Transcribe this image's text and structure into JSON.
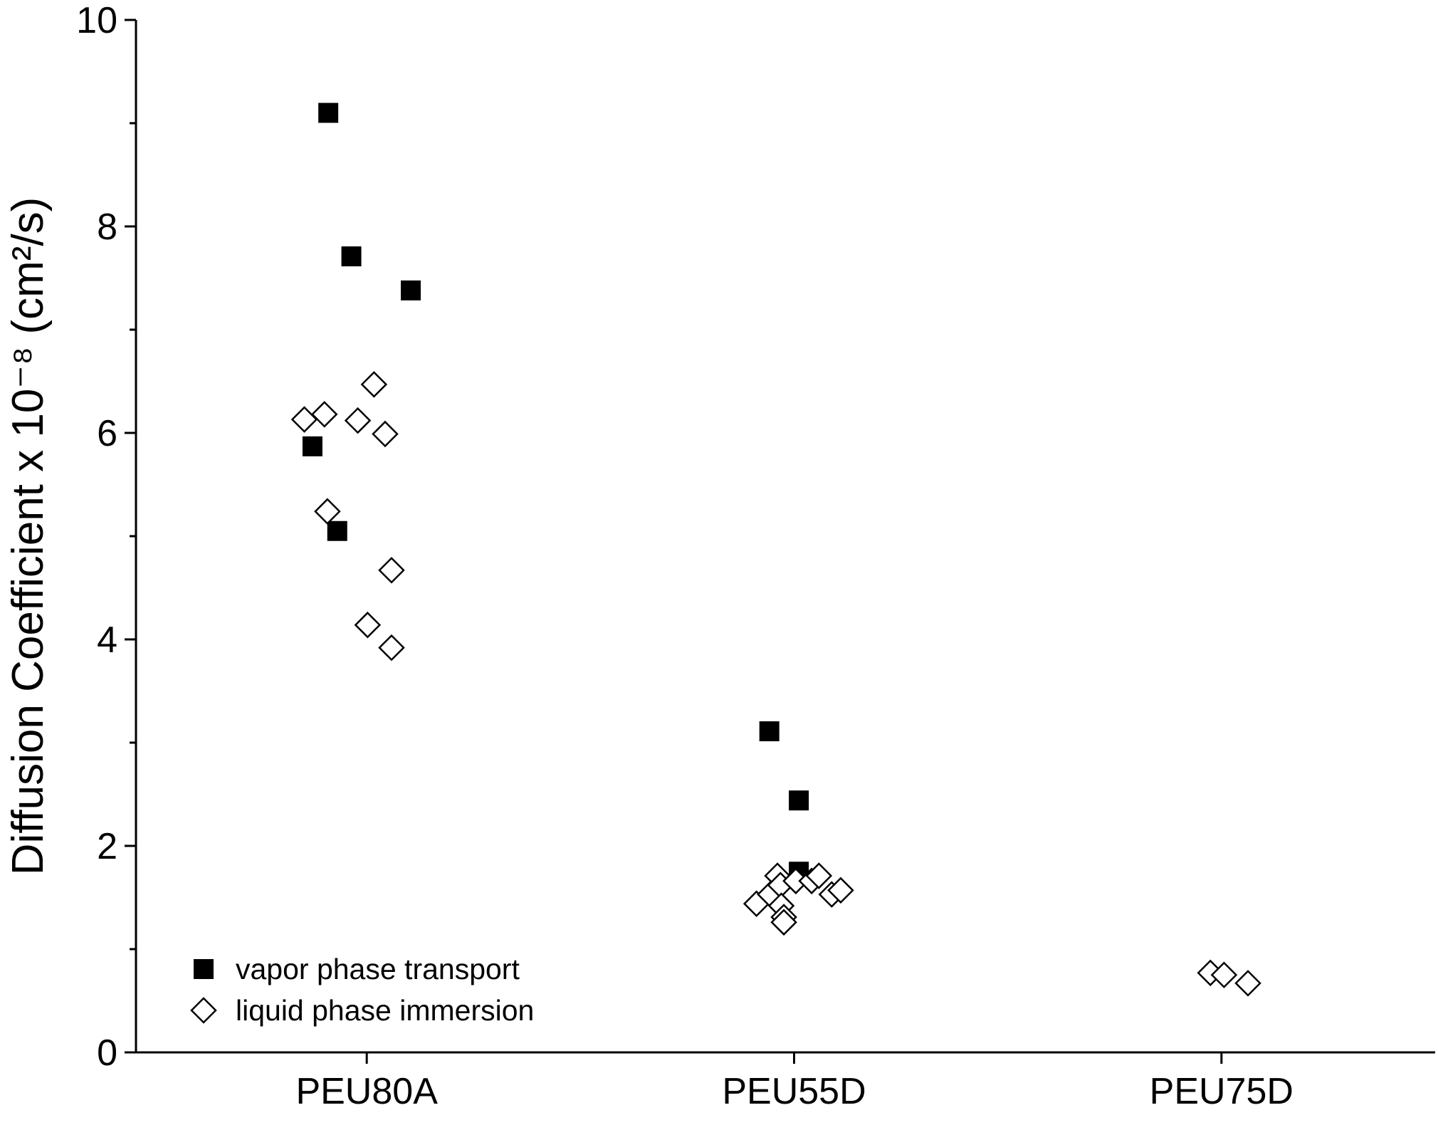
{
  "chart_data": {
    "type": "scatter",
    "y_label": "Diffusion Coefficient x 10⁻⁸ (cm²/s)",
    "xlim": [
      0.46,
      3.5
    ],
    "xticks": [
      {
        "value": 1,
        "label": "PEU80A"
      },
      {
        "value": 2,
        "label": "PEU55D"
      },
      {
        "value": 3,
        "label": "PEU75D"
      }
    ],
    "ylim": [
      0,
      10
    ],
    "yticks": [
      0,
      2,
      4,
      6,
      8,
      10
    ],
    "grid": false,
    "legend": "lower-left",
    "series": [
      {
        "name": "vapor phase transport",
        "color": "#000000",
        "marker": "filled-square",
        "x": [
          0.91,
          0.964,
          1.103,
          0.873,
          0.931,
          1.942,
          2.011,
          2.011
        ],
        "values": [
          9.1,
          7.71,
          7.38,
          5.87,
          5.05,
          3.11,
          2.44,
          1.75
        ]
      },
      {
        "name": "liquid phase immersion",
        "color": "#000000",
        "marker": "open-diamond",
        "x": [
          0.854,
          0.901,
          1.017,
          0.979,
          1.043,
          0.908,
          1.058,
          1.002,
          1.058,
          1.912,
          1.944,
          1.961,
          1.968,
          1.97,
          1.976,
          1.976,
          2.004,
          2.041,
          2.058,
          2.088,
          2.109,
          2.974,
          3.006,
          3.062
        ],
        "values": [
          6.13,
          6.18,
          6.47,
          6.12,
          5.99,
          5.24,
          4.67,
          4.14,
          3.92,
          1.44,
          1.53,
          1.71,
          1.62,
          1.42,
          1.31,
          1.26,
          1.66,
          1.66,
          1.71,
          1.53,
          1.57,
          0.77,
          0.75,
          0.67
        ]
      }
    ]
  }
}
